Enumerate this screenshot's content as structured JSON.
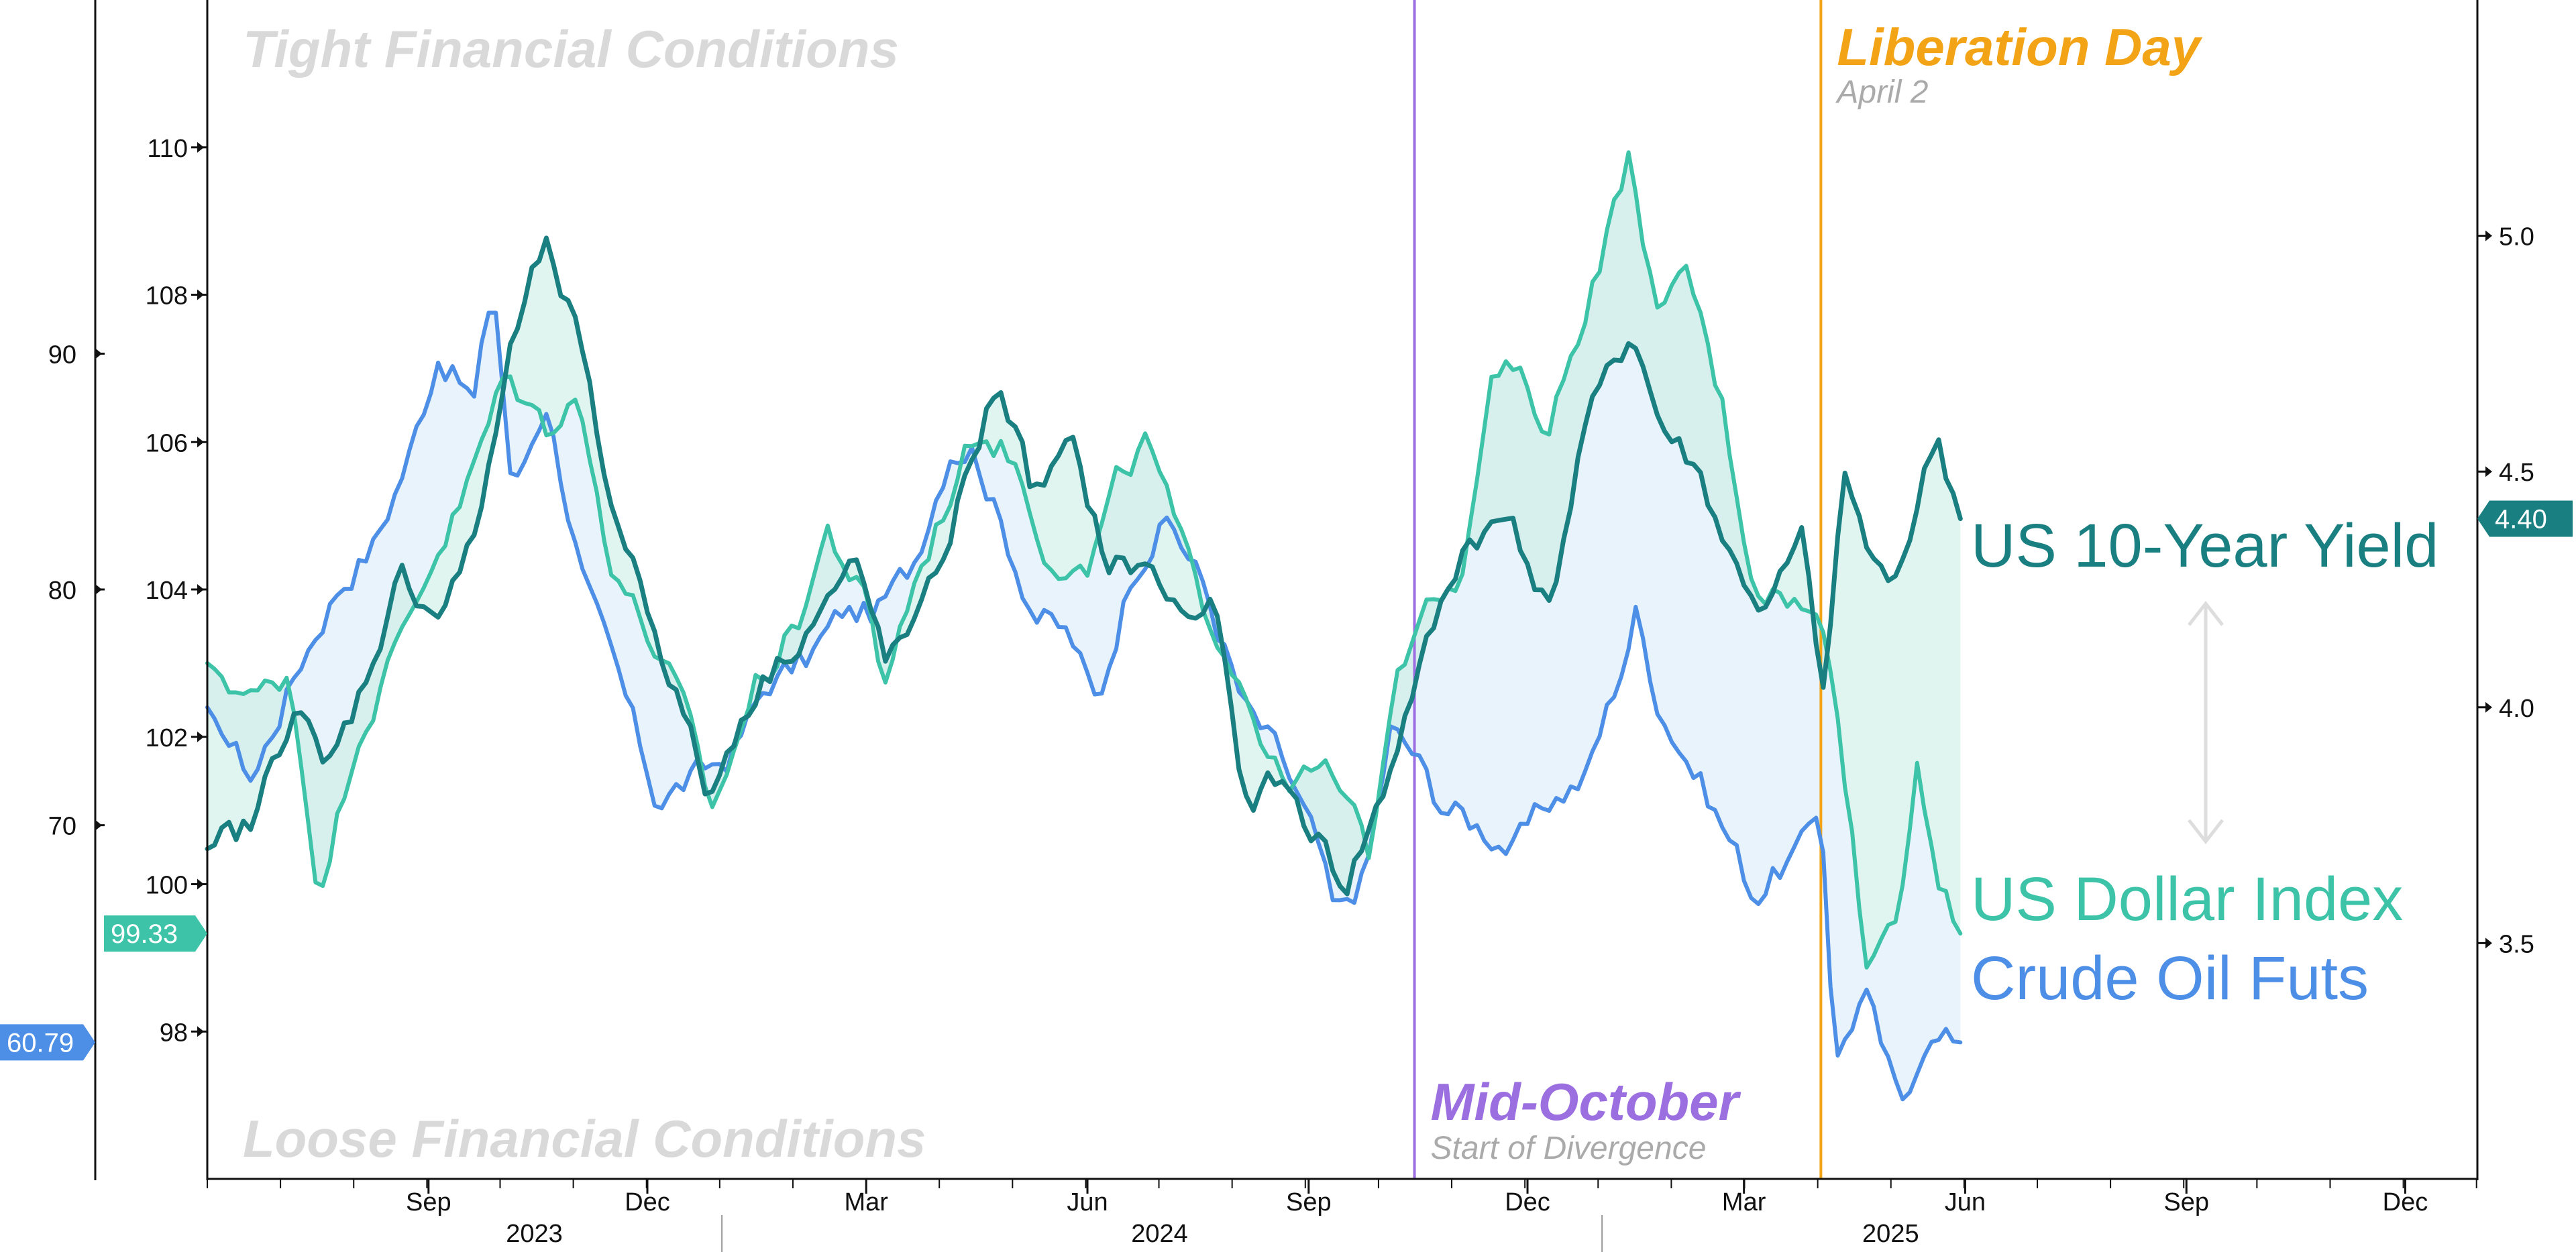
{
  "chart_data": {
    "type": "line",
    "x_range": [
      "2023-06-01",
      "2025-12-31"
    ],
    "x_ticks": [
      {
        "date": "2023-09-01",
        "label": "Sep"
      },
      {
        "date": "2023-12-01",
        "label": "Dec"
      },
      {
        "date": "2024-03-01",
        "label": "Mar"
      },
      {
        "date": "2024-06-01",
        "label": "Jun"
      },
      {
        "date": "2024-09-01",
        "label": "Sep"
      },
      {
        "date": "2024-12-01",
        "label": "Dec"
      },
      {
        "date": "2025-03-01",
        "label": "Mar"
      },
      {
        "date": "2025-06-01",
        "label": "Jun"
      },
      {
        "date": "2025-09-01",
        "label": "Sep"
      },
      {
        "date": "2025-12-01",
        "label": "Dec"
      }
    ],
    "x_years": [
      {
        "date": "2023-10-15",
        "label": "2023"
      },
      {
        "date": "2024-07-01",
        "label": "2024"
      },
      {
        "date": "2025-05-01",
        "label": "2025"
      }
    ],
    "year_boundaries": [
      "2024-01-01",
      "2025-01-01"
    ],
    "axes": {
      "oil": {
        "ylim": [
          55,
          105
        ],
        "ticks": [
          70,
          80,
          90
        ]
      },
      "dxy": {
        "ylim": [
          96,
          112
        ],
        "ticks": [
          98,
          100,
          102,
          104,
          106,
          108,
          110
        ]
      },
      "yield": {
        "ylim": [
          3.0,
          5.5
        ],
        "ticks": [
          3.5,
          4.0,
          4.5,
          5.0
        ],
        "tick_labels": [
          "3.5",
          "4.0",
          "4.5",
          "5.0"
        ]
      }
    },
    "series": [
      {
        "name": "Crude Oil Futs",
        "axis": "oil",
        "color": "#4d8fe6",
        "last_value_label": "60.79",
        "points": [
          [
            "2023-06-01",
            75
          ],
          [
            "2023-06-20",
            72
          ],
          [
            "2023-07-10",
            77
          ],
          [
            "2023-07-25",
            80
          ],
          [
            "2023-08-10",
            82
          ],
          [
            "2023-08-25",
            86
          ],
          [
            "2023-09-05",
            90
          ],
          [
            "2023-09-20",
            88
          ],
          [
            "2023-09-28",
            93
          ],
          [
            "2023-10-06",
            84
          ],
          [
            "2023-10-20",
            88
          ],
          [
            "2023-11-05",
            80
          ],
          [
            "2023-11-20",
            76
          ],
          [
            "2023-12-05",
            71
          ],
          [
            "2023-12-20",
            72
          ],
          [
            "2024-01-05",
            73
          ],
          [
            "2024-01-20",
            76
          ],
          [
            "2024-02-05",
            77
          ],
          [
            "2024-02-20",
            79
          ],
          [
            "2024-03-05",
            79
          ],
          [
            "2024-03-20",
            81
          ],
          [
            "2024-04-05",
            86
          ],
          [
            "2024-04-15",
            86
          ],
          [
            "2024-04-25",
            83
          ],
          [
            "2024-05-10",
            79
          ],
          [
            "2024-05-25",
            78
          ],
          [
            "2024-06-05",
            75
          ],
          [
            "2024-06-20",
            81
          ],
          [
            "2024-07-05",
            83
          ],
          [
            "2024-07-20",
            80
          ],
          [
            "2024-08-05",
            75
          ],
          [
            "2024-08-20",
            73
          ],
          [
            "2024-09-05",
            69
          ],
          [
            "2024-09-12",
            66
          ],
          [
            "2024-09-25",
            68
          ],
          [
            "2024-10-05",
            74
          ],
          [
            "2024-10-15",
            73
          ],
          [
            "2024-10-25",
            71
          ],
          [
            "2024-11-10",
            70
          ],
          [
            "2024-11-25",
            69
          ],
          [
            "2024-12-10",
            71
          ],
          [
            "2024-12-25",
            72
          ],
          [
            "2025-01-10",
            77
          ],
          [
            "2025-01-15",
            79
          ],
          [
            "2025-01-25",
            75
          ],
          [
            "2025-02-10",
            72
          ],
          [
            "2025-02-25",
            69
          ],
          [
            "2025-03-05",
            67
          ],
          [
            "2025-03-15",
            68
          ],
          [
            "2025-03-25",
            69
          ],
          [
            "2025-04-02",
            71
          ],
          [
            "2025-04-08",
            60
          ],
          [
            "2025-04-20",
            63
          ],
          [
            "2025-05-05",
            58
          ],
          [
            "2025-05-15",
            61
          ],
          [
            "2025-05-30",
            60.79
          ]
        ]
      },
      {
        "name": "US Dollar Index",
        "axis": "dxy",
        "color": "#3dc4a8",
        "last_value_label": "99.33",
        "points": [
          [
            "2023-06-01",
            103.0
          ],
          [
            "2023-06-20",
            102.5
          ],
          [
            "2023-07-05",
            102.9
          ],
          [
            "2023-07-18",
            99.8
          ],
          [
            "2023-08-01",
            101.9
          ],
          [
            "2023-08-15",
            102.9
          ],
          [
            "2023-09-01",
            104.3
          ],
          [
            "2023-09-15",
            105.2
          ],
          [
            "2023-10-03",
            106.9
          ],
          [
            "2023-10-20",
            106.2
          ],
          [
            "2023-11-01",
            106.7
          ],
          [
            "2023-11-15",
            104.5
          ],
          [
            "2023-12-01",
            103.4
          ],
          [
            "2023-12-15",
            102.5
          ],
          [
            "2023-12-28",
            101.0
          ],
          [
            "2024-01-15",
            102.7
          ],
          [
            "2024-02-01",
            103.5
          ],
          [
            "2024-02-14",
            104.8
          ],
          [
            "2024-03-01",
            103.8
          ],
          [
            "2024-03-08",
            102.7
          ],
          [
            "2024-03-20",
            104.0
          ],
          [
            "2024-04-16",
            106.2
          ],
          [
            "2024-05-01",
            105.8
          ],
          [
            "2024-05-15",
            104.5
          ],
          [
            "2024-06-01",
            104.2
          ],
          [
            "2024-06-14",
            105.5
          ],
          [
            "2024-06-26",
            106.0
          ],
          [
            "2024-07-15",
            104.1
          ],
          [
            "2024-08-05",
            102.7
          ],
          [
            "2024-08-20",
            101.4
          ],
          [
            "2024-09-10",
            101.5
          ],
          [
            "2024-09-27",
            100.4
          ],
          [
            "2024-10-05",
            102.5
          ],
          [
            "2024-10-20",
            104.0
          ],
          [
            "2024-11-05",
            104.3
          ],
          [
            "2024-11-15",
            106.7
          ],
          [
            "2024-11-25",
            107.0
          ],
          [
            "2024-12-10",
            106.2
          ],
          [
            "2024-12-31",
            108.5
          ],
          [
            "2025-01-13",
            109.9
          ],
          [
            "2025-01-25",
            107.5
          ],
          [
            "2025-02-05",
            108.4
          ],
          [
            "2025-02-20",
            106.5
          ],
          [
            "2025-03-05",
            104.1
          ],
          [
            "2025-03-20",
            103.9
          ],
          [
            "2025-04-02",
            103.5
          ],
          [
            "2025-04-08",
            102.8
          ],
          [
            "2025-04-21",
            98.9
          ],
          [
            "2025-05-05",
            99.8
          ],
          [
            "2025-05-12",
            101.8
          ],
          [
            "2025-05-20",
            99.9
          ],
          [
            "2025-05-30",
            99.33
          ]
        ]
      },
      {
        "name": "US 10-Year Yield",
        "axis": "yield",
        "color": "#1a7f80",
        "last_value_label": "4.40",
        "points": [
          [
            "2023-06-01",
            3.7
          ],
          [
            "2023-06-20",
            3.75
          ],
          [
            "2023-07-08",
            4.03
          ],
          [
            "2023-07-20",
            3.85
          ],
          [
            "2023-08-05",
            4.05
          ],
          [
            "2023-08-20",
            4.28
          ],
          [
            "2023-09-05",
            4.2
          ],
          [
            "2023-09-20",
            4.35
          ],
          [
            "2023-10-05",
            4.75
          ],
          [
            "2023-10-19",
            4.98
          ],
          [
            "2023-11-01",
            4.8
          ],
          [
            "2023-11-15",
            4.45
          ],
          [
            "2023-12-01",
            4.22
          ],
          [
            "2023-12-15",
            4.0
          ],
          [
            "2023-12-27",
            3.8
          ],
          [
            "2024-01-10",
            4.0
          ],
          [
            "2024-01-25",
            4.1
          ],
          [
            "2024-02-10",
            4.2
          ],
          [
            "2024-02-25",
            4.3
          ],
          [
            "2024-03-10",
            4.1
          ],
          [
            "2024-03-25",
            4.2
          ],
          [
            "2024-04-25",
            4.7
          ],
          [
            "2024-05-10",
            4.45
          ],
          [
            "2024-05-25",
            4.55
          ],
          [
            "2024-06-10",
            4.3
          ],
          [
            "2024-06-25",
            4.3
          ],
          [
            "2024-07-10",
            4.2
          ],
          [
            "2024-07-25",
            4.2
          ],
          [
            "2024-08-05",
            3.78
          ],
          [
            "2024-08-20",
            3.85
          ],
          [
            "2024-09-05",
            3.72
          ],
          [
            "2024-09-16",
            3.62
          ],
          [
            "2024-10-01",
            3.8
          ],
          [
            "2024-10-15",
            4.05
          ],
          [
            "2024-11-05",
            4.35
          ],
          [
            "2024-11-25",
            4.4
          ],
          [
            "2024-12-10",
            4.2
          ],
          [
            "2024-12-25",
            4.6
          ],
          [
            "2025-01-14",
            4.8
          ],
          [
            "2025-01-25",
            4.6
          ],
          [
            "2025-02-10",
            4.5
          ],
          [
            "2025-02-25",
            4.3
          ],
          [
            "2025-03-10",
            4.2
          ],
          [
            "2025-03-25",
            4.35
          ],
          [
            "2025-04-04",
            4.0
          ],
          [
            "2025-04-11",
            4.5
          ],
          [
            "2025-04-25",
            4.28
          ],
          [
            "2025-05-05",
            4.3
          ],
          [
            "2025-05-20",
            4.58
          ],
          [
            "2025-05-30",
            4.4
          ]
        ]
      }
    ],
    "events": [
      {
        "date": "2024-10-15",
        "title": "Mid-October",
        "subtitle": "Start of Divergence",
        "color": "#9b6fe0"
      },
      {
        "date": "2025-04-02",
        "title": "Liberation Day",
        "subtitle": "April 2",
        "color": "#f2a416"
      }
    ],
    "annotations": {
      "top": "Tight Financial Conditions",
      "bottom": "Loose Financial Conditions"
    },
    "legend_placement": "right",
    "grid": false
  },
  "colors": {
    "oil": "#4d8fe6",
    "dxy": "#3dc4a8",
    "yield": "#1a7f80",
    "arrow": "#dddddd",
    "fill_oil_dxy": "#dfeef9",
    "fill_dxy_yield": "#c8ece4"
  }
}
